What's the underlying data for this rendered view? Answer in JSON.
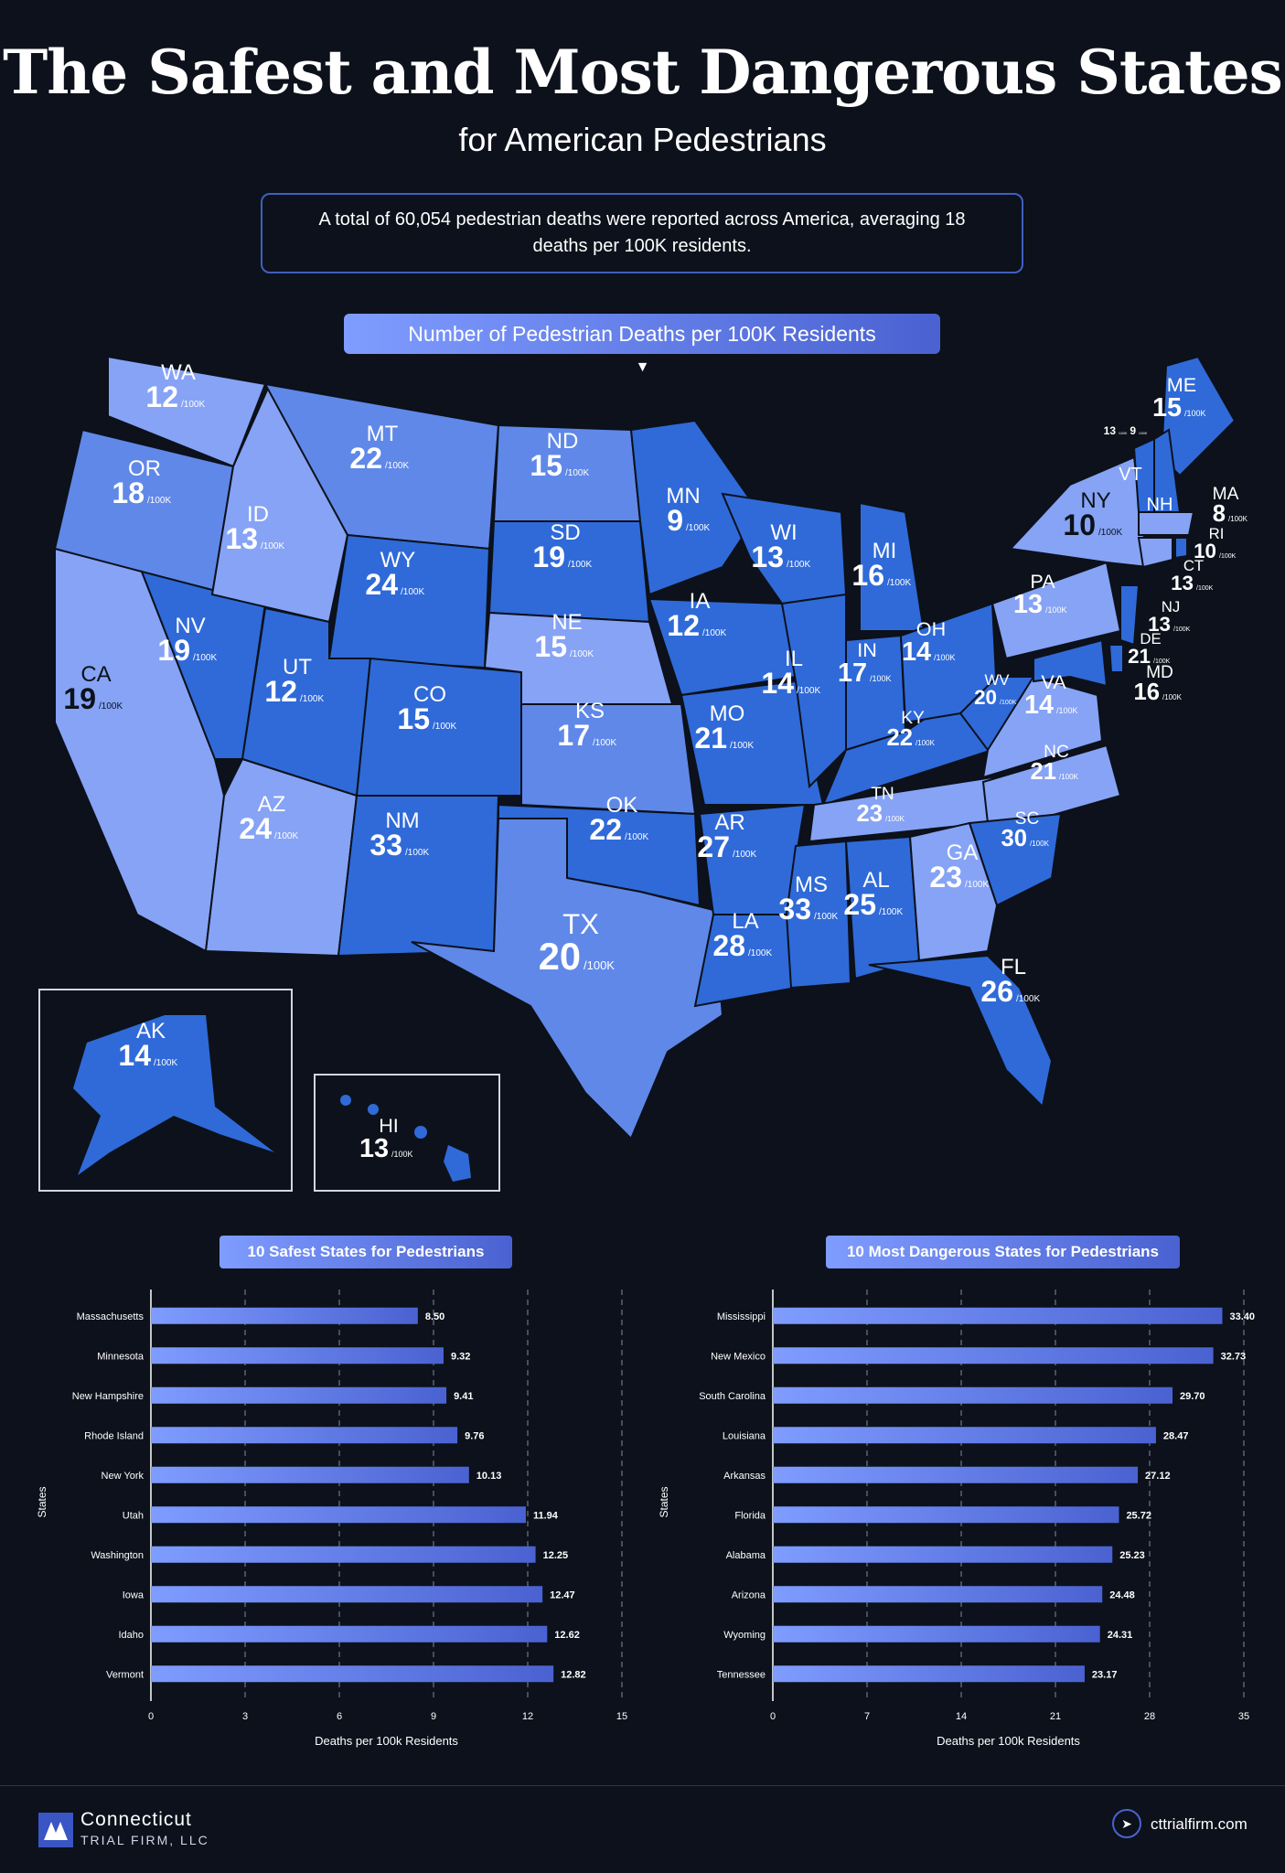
{
  "header": {
    "title": "The Safest and Most Dangerous States",
    "subtitle": "for American Pedestrians",
    "summary": "A total of 60,054 pedestrian deaths were reported across America, averaging 18 deaths per 100K residents.",
    "map_label": "Number of Pedestrian Deaths per 100K Residents",
    "arrow": "▼"
  },
  "unit": "/100K",
  "map_states": [
    {
      "abbr": "WA",
      "value": "12"
    },
    {
      "abbr": "OR",
      "value": "18"
    },
    {
      "abbr": "CA",
      "value": "19"
    },
    {
      "abbr": "ID",
      "value": "13"
    },
    {
      "abbr": "NV",
      "value": "19"
    },
    {
      "abbr": "MT",
      "value": "22"
    },
    {
      "abbr": "WY",
      "value": "24"
    },
    {
      "abbr": "UT",
      "value": "12"
    },
    {
      "abbr": "AZ",
      "value": "24"
    },
    {
      "abbr": "CO",
      "value": "15"
    },
    {
      "abbr": "NM",
      "value": "33"
    },
    {
      "abbr": "ND",
      "value": "15"
    },
    {
      "abbr": "SD",
      "value": "19"
    },
    {
      "abbr": "NE",
      "value": "15"
    },
    {
      "abbr": "KS",
      "value": "17"
    },
    {
      "abbr": "OK",
      "value": "22"
    },
    {
      "abbr": "TX",
      "value": "20"
    },
    {
      "abbr": "MN",
      "value": "9"
    },
    {
      "abbr": "IA",
      "value": "12"
    },
    {
      "abbr": "MO",
      "value": "21"
    },
    {
      "abbr": "AR",
      "value": "27"
    },
    {
      "abbr": "LA",
      "value": "28"
    },
    {
      "abbr": "WI",
      "value": "13"
    },
    {
      "abbr": "IL",
      "value": "14"
    },
    {
      "abbr": "MS",
      "value": "33"
    },
    {
      "abbr": "MI",
      "value": "16"
    },
    {
      "abbr": "IN",
      "value": "17"
    },
    {
      "abbr": "KY",
      "value": "22"
    },
    {
      "abbr": "TN",
      "value": "23"
    },
    {
      "abbr": "AL",
      "value": "25"
    },
    {
      "abbr": "OH",
      "value": "14"
    },
    {
      "abbr": "WV",
      "value": "20"
    },
    {
      "abbr": "VA",
      "value": "14"
    },
    {
      "abbr": "NC",
      "value": "21"
    },
    {
      "abbr": "SC",
      "value": "30"
    },
    {
      "abbr": "GA",
      "value": "23"
    },
    {
      "abbr": "FL",
      "value": "26"
    },
    {
      "abbr": "PA",
      "value": "13"
    },
    {
      "abbr": "NY",
      "value": "10"
    },
    {
      "abbr": "ME",
      "value": "15"
    },
    {
      "abbr": "VT",
      "value": "13"
    },
    {
      "abbr": "NH",
      "value": "9"
    },
    {
      "abbr": "MA",
      "value": "8"
    },
    {
      "abbr": "RI",
      "value": "10"
    },
    {
      "abbr": "CT",
      "value": "13"
    },
    {
      "abbr": "NJ",
      "value": "13"
    },
    {
      "abbr": "DE",
      "value": "21"
    },
    {
      "abbr": "MD",
      "value": "16"
    },
    {
      "abbr": "AK",
      "value": "14"
    },
    {
      "abbr": "HI",
      "value": "13"
    }
  ],
  "colors": {
    "light": "#86a3f5",
    "mid": "#5f88e8",
    "dark": "#2f6ad8",
    "background": "#0c111b"
  },
  "chart_data": [
    {
      "type": "bar",
      "title": "10 Safest States for Pedestrians",
      "categories": [
        "Massachusetts",
        "Minnesota",
        "New Hampshire",
        "Rhode Island",
        "New York",
        "Utah",
        "Washington",
        "Iowa",
        "Idaho",
        "Vermont"
      ],
      "values": [
        8.5,
        9.32,
        9.41,
        9.76,
        10.13,
        11.94,
        12.25,
        12.47,
        12.62,
        12.82
      ],
      "value_labels": [
        "8.50",
        "9.32",
        "9.41",
        "9.76",
        "10.13",
        "11.94",
        "12.25",
        "12.47",
        "12.62",
        "12.82"
      ],
      "xlabel": "Deaths per 100k Residents",
      "ylabel": "States",
      "xlim": [
        0,
        15
      ],
      "ticks": [
        "0",
        "3",
        "6",
        "9",
        "12",
        "15"
      ],
      "orientation": "horizontal"
    },
    {
      "type": "bar",
      "title": "10 Most Dangerous States for Pedestrians",
      "categories": [
        "Mississippi",
        "New Mexico",
        "South Carolina",
        "Louisiana",
        "Arkansas",
        "Florida",
        "Alabama",
        "Arizona",
        "Wyoming",
        "Tennessee"
      ],
      "values": [
        33.4,
        32.73,
        29.7,
        28.47,
        27.12,
        25.72,
        25.23,
        24.48,
        24.31,
        23.17
      ],
      "value_labels": [
        "33.40",
        "32.73",
        "29.70",
        "28.47",
        "27.12",
        "25.72",
        "25.23",
        "24.48",
        "24.31",
        "23.17"
      ],
      "xlabel": "Deaths per 100k Residents",
      "ylabel": "States",
      "xlim": [
        0,
        35
      ],
      "ticks": [
        "0",
        "7",
        "14",
        "21",
        "28",
        "35"
      ],
      "orientation": "horizontal"
    }
  ],
  "footer": {
    "brand": "Connecticut",
    "brand_sub": "TRIAL FIRM, LLC",
    "website": "cttrialfirm.com"
  }
}
